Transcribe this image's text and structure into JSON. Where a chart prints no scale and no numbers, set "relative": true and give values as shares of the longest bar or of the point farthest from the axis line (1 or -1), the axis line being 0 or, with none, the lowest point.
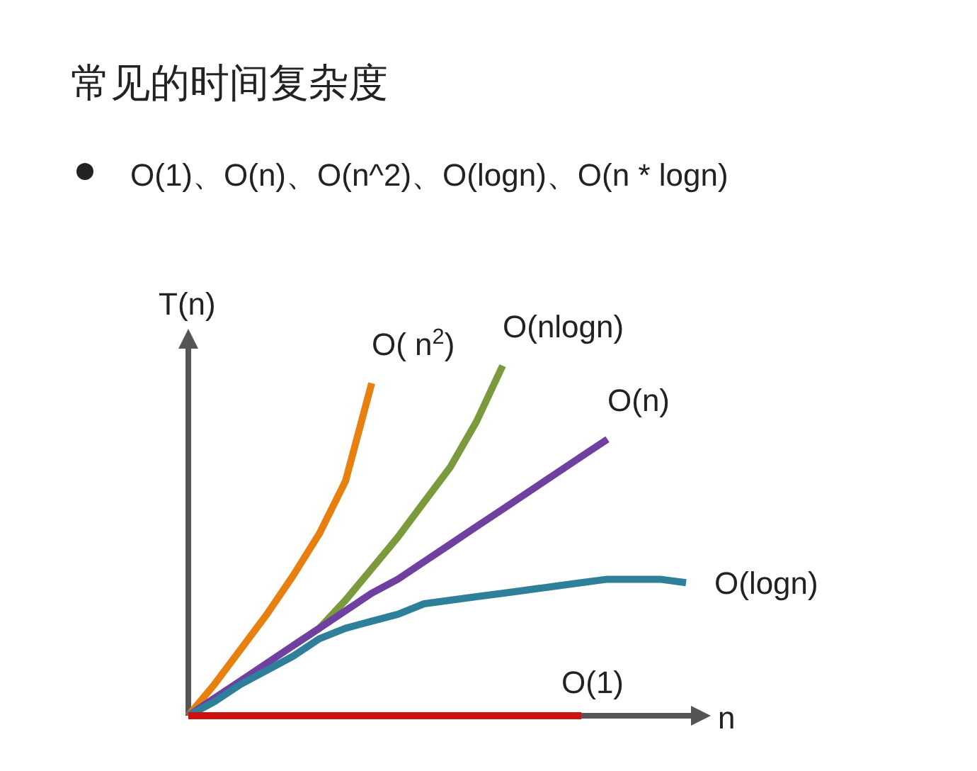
{
  "chart_data": {
    "type": "line",
    "relative": true,
    "title": "常见的时间复杂度",
    "subtitle": "O(1)、O(n)、O(n^2)、O(logn)、O(n * logn)",
    "xlabel": "n",
    "ylabel": "T(n)",
    "categories": [
      null,
      null,
      null,
      null,
      null,
      null,
      null,
      null,
      null,
      null,
      null,
      null,
      null,
      null,
      null,
      null,
      null,
      null,
      null,
      null
    ],
    "series": [
      {
        "name": "O( n$^{2}$)",
        "color": "#e8800f",
        "values": [
          0,
          0.09,
          0.19,
          0.29,
          0.4,
          0.52,
          0.67,
          0.95,
          null,
          null,
          null,
          null,
          null,
          null,
          null,
          null,
          null,
          null,
          null,
          null
        ]
      },
      {
        "name": "O(nlogn)",
        "color": "#7a9a3c",
        "values": [
          null,
          null,
          null,
          null,
          0.2,
          0.25,
          0.33,
          0.42,
          0.51,
          0.61,
          0.71,
          0.84,
          1,
          null,
          null,
          null,
          null,
          null,
          null,
          null
        ]
      },
      {
        "name": "O(n)",
        "color": "#7040a0",
        "values": [
          0,
          0.05,
          0.1,
          0.15,
          0.2,
          0.25,
          0.3,
          0.35,
          0.39,
          0.44,
          0.49,
          0.54,
          0.59,
          0.64,
          0.69,
          0.74,
          0.79,
          null,
          null,
          null
        ]
      },
      {
        "name": "O(logn)",
        "color": "#2e7f9a",
        "values": [
          0,
          0.04,
          0.09,
          0.13,
          0.17,
          0.22,
          0.25,
          0.27,
          0.29,
          0.32,
          0.33,
          0.34,
          0.35,
          0.36,
          0.37,
          0.38,
          0.39,
          0.39,
          0.39,
          0.38
        ]
      },
      {
        "name": "O(1)",
        "color": "#cc1111",
        "values": [
          0,
          0,
          0,
          0,
          0,
          0,
          0,
          0,
          0,
          0,
          0,
          0,
          0,
          0,
          0,
          0,
          null,
          null,
          null,
          null
        ]
      }
    ]
  }
}
